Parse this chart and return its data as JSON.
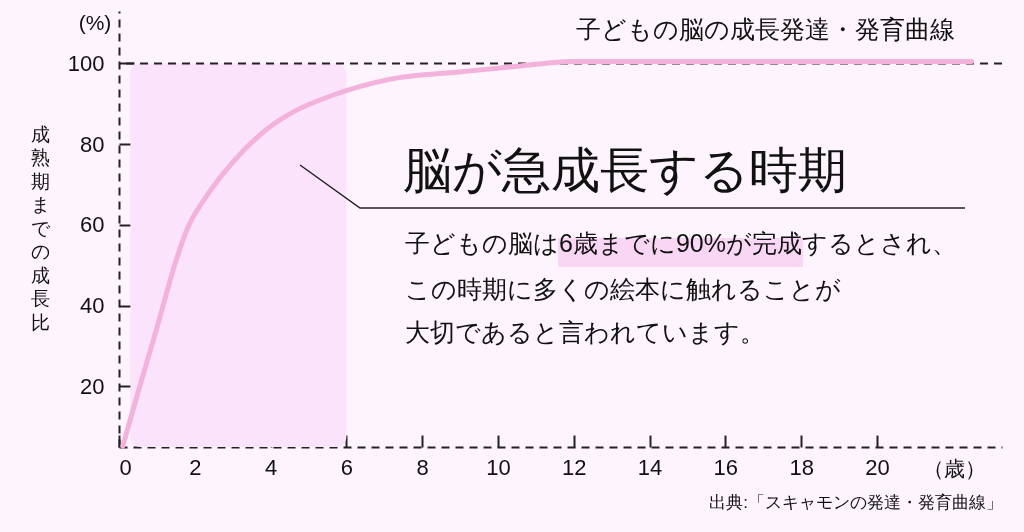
{
  "chart_data": {
    "type": "line",
    "title": "子どもの脳の成長発達・発育曲線",
    "xlabel": "（歳）",
    "ylabel": "成熟期までの成長比",
    "x": [
      0.1,
      0.5,
      1,
      1.5,
      1.8,
      2.3,
      3,
      3.9,
      4.6,
      5.6,
      7.1,
      9.1,
      10.5,
      12,
      22.5
    ],
    "series": [
      {
        "color": "#f3b2dc",
        "values": [
          5.2,
          18.5,
          34.5,
          51,
          59,
          67,
          75.5,
          83.7,
          88,
          92,
          96,
          98,
          99.3,
          100.5,
          100.5
        ]
      }
    ],
    "xlim": [
      0,
      23.3
    ],
    "ylim": [
      5,
      113
    ],
    "xticks": [
      0,
      2,
      4,
      6,
      8,
      10,
      12,
      14,
      16,
      18,
      20
    ],
    "yticks": [
      20,
      40,
      60,
      80,
      100
    ],
    "grid": false,
    "legend": false,
    "marker": "none",
    "line_style": "solid",
    "ref_lines": [
      {
        "axis": "y",
        "value": 100,
        "line_style": "dashed",
        "color": "#222222"
      }
    ],
    "bands": [
      {
        "axis": "x",
        "from": 0.3,
        "to": 6,
        "label": "脳が急成長する時期",
        "color": "#fbe3fb"
      }
    ],
    "annotations": [
      "(%)",
      "子どもの脳は6歳までに90%が完成するとされ、",
      "この時期に多くの絵本に触れることが",
      "大切であると言われています。",
      "出典:「スキャモンの発達・発育曲線」"
    ]
  }
}
